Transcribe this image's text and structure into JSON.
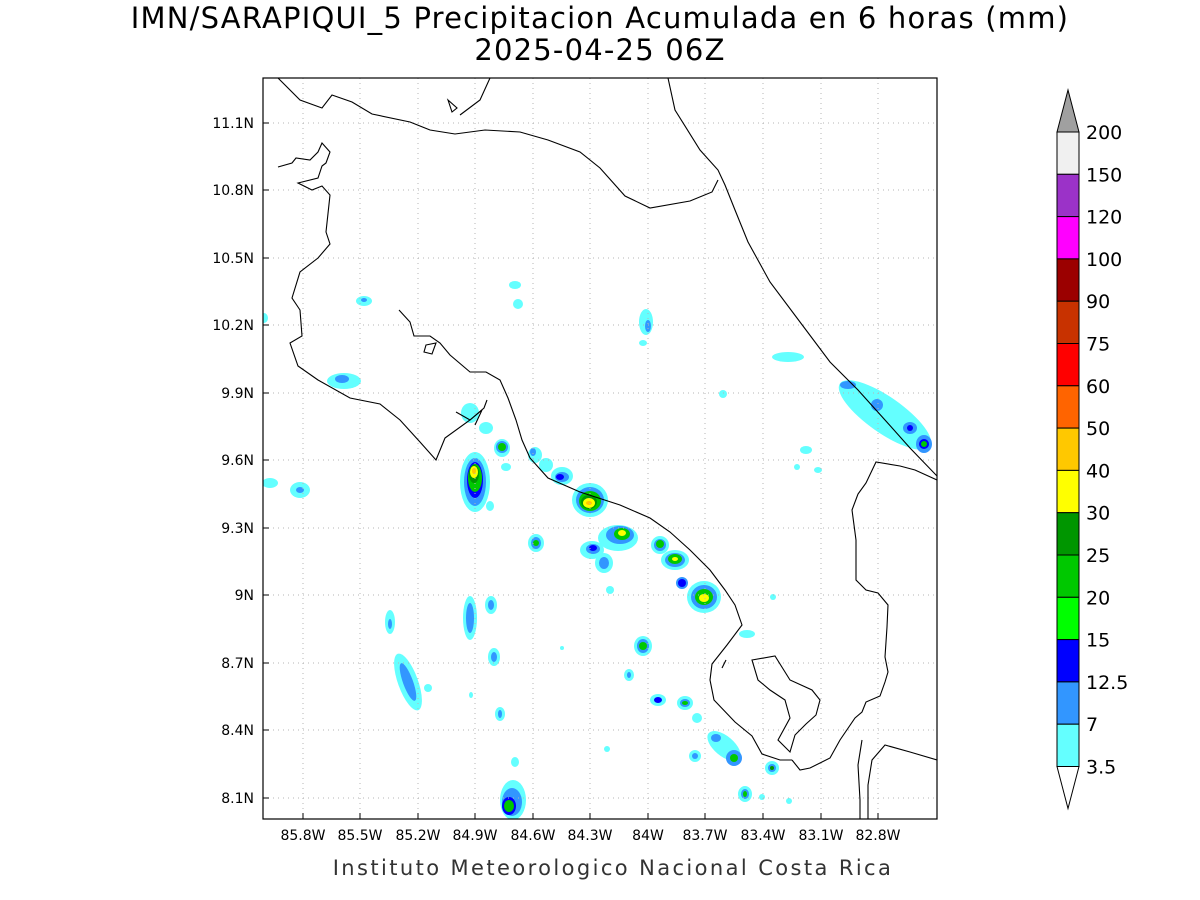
{
  "title": "IMN/SARAPIQUI_5 Precipitacion Acumulada en 6 horas (mm)",
  "subtitle": "2025-04-25 06Z",
  "credit": "Instituto Meteorologico Nacional Costa Rica",
  "map": {
    "lon_labels": [
      "85.8W",
      "85.5W",
      "85.2W",
      "84.9W",
      "84.6W",
      "84.3W",
      "84W",
      "83.7W",
      "83.4W",
      "83.1W",
      "82.8W"
    ],
    "lat_labels": [
      "11.1N",
      "10.8N",
      "10.5N",
      "10.2N",
      "9.9N",
      "9.6N",
      "9.3N",
      "9N",
      "8.7N",
      "8.4N",
      "8.1N"
    ],
    "grid": true
  },
  "colorbar": {
    "levels": [
      "200",
      "150",
      "120",
      "100",
      "90",
      "75",
      "60",
      "50",
      "40",
      "30",
      "25",
      "20",
      "15",
      "12.5",
      "7",
      "3.5"
    ],
    "colors": [
      "#f0f0f0",
      "#9b32c8",
      "#ff00ff",
      "#9b0000",
      "#c83200",
      "#ff0000",
      "#ff6400",
      "#ffc800",
      "#ffff00",
      "#009600",
      "#00c800",
      "#00ff00",
      "#0000ff",
      "#3296ff",
      "#64ffff",
      "#ffffff",
      "#a0a0a0"
    ]
  }
}
